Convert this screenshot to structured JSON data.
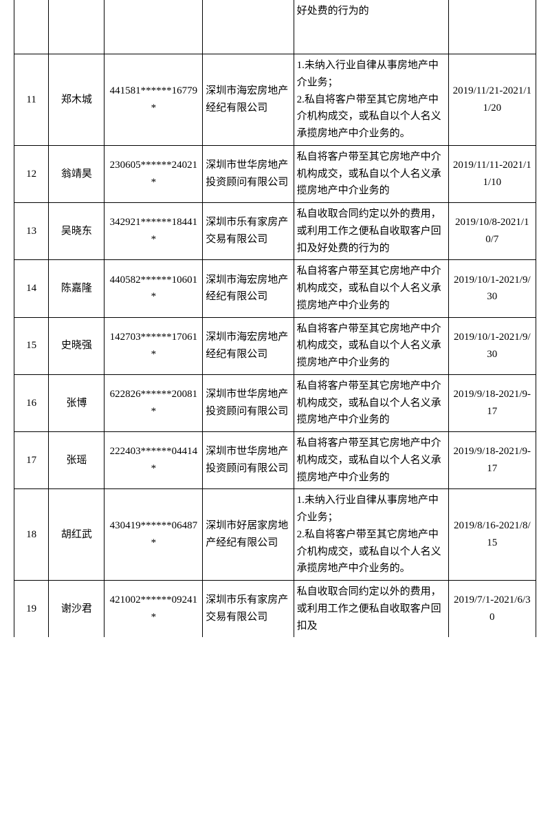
{
  "table": {
    "fragment_top": {
      "violation": "好处费的行为的"
    },
    "rows": [
      {
        "idx": "11",
        "name": "郑木城",
        "id": "441581******16779*",
        "company": "深圳市海宏房地产经纪有限公司",
        "violation": "1.未纳入行业自律从事房地产中介业务；\n2.私自将客户带至其它房地产中介机构成交，或私自以个人名义承揽房地产中介业务的。",
        "date": "2019/11/21-2021/11/20"
      },
      {
        "idx": "12",
        "name": "翁靖昊",
        "id": "230605******24021*",
        "company": "深圳市世华房地产投资顾问有限公司",
        "violation": "私自将客户带至其它房地产中介机构成交，或私自以个人名义承揽房地产中介业务的",
        "date": "2019/11/11-2021/11/10"
      },
      {
        "idx": "13",
        "name": "吴晓东",
        "id": "342921******18441*",
        "company": "深圳市乐有家房产交易有限公司",
        "violation": "私自收取合同约定以外的费用，或利用工作之便私自收取客户回扣及好处费的行为的",
        "date": "2019/10/8-2021/10/7"
      },
      {
        "idx": "14",
        "name": "陈嘉隆",
        "id": "440582******10601*",
        "company": "深圳市海宏房地产经纪有限公司",
        "violation": "私自将客户带至其它房地产中介机构成交，或私自以个人名义承揽房地产中介业务的",
        "date": "2019/10/1-2021/9/30"
      },
      {
        "idx": "15",
        "name": "史晓强",
        "id": "142703******17061*",
        "company": "深圳市海宏房地产经纪有限公司",
        "violation": "私自将客户带至其它房地产中介机构成交，或私自以个人名义承揽房地产中介业务的",
        "date": "2019/10/1-2021/9/30"
      },
      {
        "idx": "16",
        "name": "张博",
        "id": "622826******20081*",
        "company": "深圳市世华房地产投资顾问有限公司",
        "violation": "私自将客户带至其它房地产中介机构成交，或私自以个人名义承揽房地产中介业务的",
        "date": "2019/9/18-2021/9-17"
      },
      {
        "idx": "17",
        "name": "张瑶",
        "id": "222403******04414*",
        "company": "深圳市世华房地产投资顾问有限公司",
        "violation": "私自将客户带至其它房地产中介机构成交，或私自以个人名义承揽房地产中介业务的",
        "date": "2019/9/18-2021/9-17"
      },
      {
        "idx": "18",
        "name": "胡红武",
        "id": "430419******06487*",
        "company": "深圳市好居家房地产经纪有限公司",
        "violation": "1.未纳入行业自律从事房地产中介业务；\n2.私自将客户带至其它房地产中介机构成交，或私自以个人名义承揽房地产中介业务的。",
        "date": "2019/8/16-2021/8/15"
      }
    ],
    "fragment_bottom": {
      "idx": "19",
      "name": "谢沙君",
      "id": "421002******09241*",
      "company": "深圳市乐有家房产交易有限公司",
      "violation": "私自收取合同约定以外的费用，或利用工作之便私自收取客户回扣及",
      "date": "2019/7/1-2021/6/30"
    }
  }
}
